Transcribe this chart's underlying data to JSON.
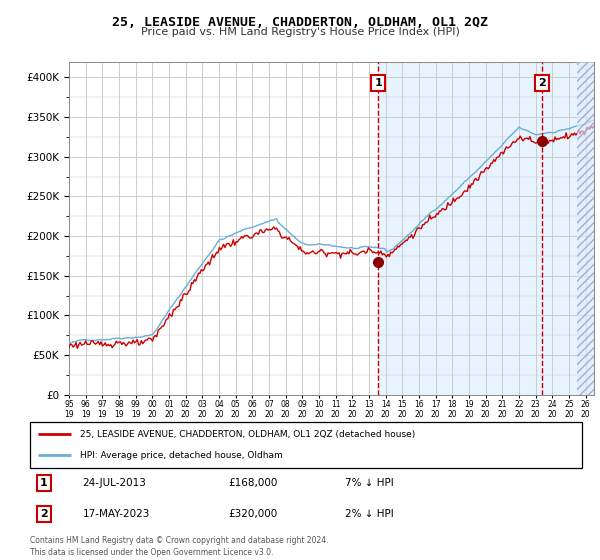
{
  "title": "25, LEASIDE AVENUE, CHADDERTON, OLDHAM, OL1 2QZ",
  "subtitle": "Price paid vs. HM Land Registry's House Price Index (HPI)",
  "legend_line1": "25, LEASIDE AVENUE, CHADDERTON, OLDHAM, OL1 2QZ (detached house)",
  "legend_line2": "HPI: Average price, detached house, Oldham",
  "annotation1_date": "24-JUL-2013",
  "annotation1_price": "£168,000",
  "annotation1_hpi": "7% ↓ HPI",
  "annotation2_date": "17-MAY-2023",
  "annotation2_price": "£320,000",
  "annotation2_hpi": "2% ↓ HPI",
  "footnote": "Contains HM Land Registry data © Crown copyright and database right 2024.\nThis data is licensed under the Open Government Licence v3.0.",
  "hpi_color": "#6aaed6",
  "price_color": "#cc0000",
  "marker_color": "#8b0000",
  "vline_color": "#cc0000",
  "bg_color": "#ddeeff",
  "grid_color": "#cccccc",
  "ylim": [
    0,
    420000
  ],
  "xlim_start": 1995.0,
  "xlim_end": 2026.5,
  "sale1_year": 2013.56,
  "sale1_value": 168000,
  "sale2_year": 2023.38,
  "sale2_value": 320000
}
